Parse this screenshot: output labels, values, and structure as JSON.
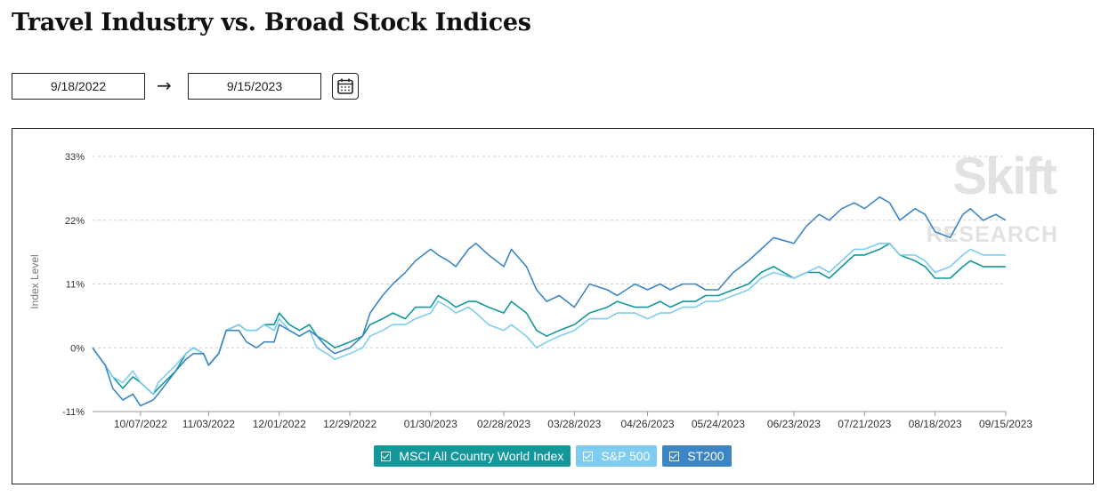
{
  "title": "Travel Industry vs. Broad Stock Indices",
  "date_range": {
    "start": "9/18/2022",
    "end": "9/15/2023",
    "arrow": "→"
  },
  "watermark": {
    "line1": "Skift",
    "line2": "RESEARCH"
  },
  "chart_data": {
    "type": "line",
    "ylabel": "Index Level",
    "xlabel": "",
    "ylim": [
      -11,
      33
    ],
    "y_ticks": [
      "33%",
      "22%",
      "11%",
      "0%",
      "-11%"
    ],
    "y_tick_values": [
      33,
      22,
      11,
      0,
      -11
    ],
    "x_ticks": [
      "10/07/2022",
      "11/03/2022",
      "12/01/2022",
      "12/29/2022",
      "01/30/2023",
      "02/28/2023",
      "03/28/2023",
      "04/26/2023",
      "05/24/2023",
      "06/23/2023",
      "07/21/2023",
      "08/18/2023",
      "09/15/2023"
    ],
    "x_range": [
      "9/18/2022",
      "9/15/2023"
    ],
    "grid": "horizontal dashed",
    "legend_placement": "bottom-center",
    "series": [
      {
        "name": "MSCI All Country World Index",
        "color": "#13979b",
        "points": [
          [
            "9/18/2022",
            0
          ],
          [
            "9/23/2022",
            -3
          ],
          [
            "9/26/2022",
            -5
          ],
          [
            "9/30/2022",
            -7
          ],
          [
            "10/04/2022",
            -5
          ],
          [
            "10/07/2022",
            -6
          ],
          [
            "10/12/2022",
            -8
          ],
          [
            "10/14/2022",
            -7
          ],
          [
            "10/21/2022",
            -4
          ],
          [
            "10/25/2022",
            -1
          ],
          [
            "10/28/2022",
            0
          ],
          [
            "11/01/2022",
            -1
          ],
          [
            "11/03/2022",
            -3
          ],
          [
            "11/07/2022",
            -1
          ],
          [
            "11/10/2022",
            3
          ],
          [
            "11/15/2022",
            4
          ],
          [
            "11/18/2022",
            3
          ],
          [
            "11/22/2022",
            3
          ],
          [
            "11/25/2022",
            4
          ],
          [
            "11/29/2022",
            4
          ],
          [
            "12/01/2022",
            6
          ],
          [
            "12/05/2022",
            4
          ],
          [
            "12/09/2022",
            3
          ],
          [
            "12/13/2022",
            4
          ],
          [
            "12/16/2022",
            2
          ],
          [
            "12/20/2022",
            1
          ],
          [
            "12/23/2022",
            0
          ],
          [
            "12/29/2022",
            1
          ],
          [
            "01/03/2023",
            2
          ],
          [
            "01/06/2023",
            4
          ],
          [
            "01/11/2023",
            5
          ],
          [
            "01/15/2023",
            6
          ],
          [
            "01/20/2023",
            5
          ],
          [
            "01/24/2023",
            7
          ],
          [
            "01/30/2023",
            7
          ],
          [
            "02/02/2023",
            9
          ],
          [
            "02/06/2023",
            8
          ],
          [
            "02/09/2023",
            7
          ],
          [
            "02/14/2023",
            8
          ],
          [
            "02/17/2023",
            8
          ],
          [
            "02/22/2023",
            7
          ],
          [
            "02/28/2023",
            6
          ],
          [
            "03/03/2023",
            8
          ],
          [
            "03/09/2023",
            6
          ],
          [
            "03/13/2023",
            3
          ],
          [
            "03/17/2023",
            2
          ],
          [
            "03/22/2023",
            3
          ],
          [
            "03/28/2023",
            4
          ],
          [
            "04/03/2023",
            6
          ],
          [
            "04/10/2023",
            7
          ],
          [
            "04/14/2023",
            8
          ],
          [
            "04/21/2023",
            7
          ],
          [
            "04/26/2023",
            7
          ],
          [
            "05/01/2023",
            8
          ],
          [
            "05/05/2023",
            7
          ],
          [
            "05/10/2023",
            8
          ],
          [
            "05/15/2023",
            8
          ],
          [
            "05/19/2023",
            9
          ],
          [
            "05/24/2023",
            9
          ],
          [
            "05/30/2023",
            10
          ],
          [
            "06/05/2023",
            11
          ],
          [
            "06/10/2023",
            13
          ],
          [
            "06/15/2023",
            14
          ],
          [
            "06/23/2023",
            12
          ],
          [
            "06/28/2023",
            13
          ],
          [
            "07/03/2023",
            13
          ],
          [
            "07/07/2023",
            12
          ],
          [
            "07/12/2023",
            14
          ],
          [
            "07/17/2023",
            16
          ],
          [
            "07/21/2023",
            16
          ],
          [
            "07/27/2023",
            17
          ],
          [
            "07/31/2023",
            18
          ],
          [
            "08/04/2023",
            16
          ],
          [
            "08/10/2023",
            15
          ],
          [
            "08/14/2023",
            14
          ],
          [
            "08/18/2023",
            12
          ],
          [
            "08/24/2023",
            12
          ],
          [
            "08/29/2023",
            14
          ],
          [
            "09/01/2023",
            15
          ],
          [
            "09/06/2023",
            14
          ],
          [
            "09/11/2023",
            14
          ],
          [
            "09/15/2023",
            14
          ]
        ]
      },
      {
        "name": "S&P 500",
        "color": "#7ecdf0",
        "points": [
          [
            "9/18/2022",
            0
          ],
          [
            "9/23/2022",
            -3
          ],
          [
            "9/26/2022",
            -5
          ],
          [
            "9/30/2022",
            -6
          ],
          [
            "10/04/2022",
            -4
          ],
          [
            "10/07/2022",
            -6
          ],
          [
            "10/12/2022",
            -8
          ],
          [
            "10/14/2022",
            -6
          ],
          [
            "10/21/2022",
            -3
          ],
          [
            "10/25/2022",
            -1
          ],
          [
            "10/28/2022",
            0
          ],
          [
            "11/01/2022",
            -1
          ],
          [
            "11/03/2022",
            -3
          ],
          [
            "11/07/2022",
            -1
          ],
          [
            "11/10/2022",
            3
          ],
          [
            "11/15/2022",
            4
          ],
          [
            "11/18/2022",
            3
          ],
          [
            "11/22/2022",
            3
          ],
          [
            "11/25/2022",
            4
          ],
          [
            "11/29/2022",
            3
          ],
          [
            "12/01/2022",
            5
          ],
          [
            "12/05/2022",
            3
          ],
          [
            "12/09/2022",
            2
          ],
          [
            "12/13/2022",
            3
          ],
          [
            "12/16/2022",
            0
          ],
          [
            "12/20/2022",
            -1
          ],
          [
            "12/23/2022",
            -2
          ],
          [
            "12/29/2022",
            -1
          ],
          [
            "01/03/2023",
            0
          ],
          [
            "01/06/2023",
            2
          ],
          [
            "01/11/2023",
            3
          ],
          [
            "01/15/2023",
            4
          ],
          [
            "01/20/2023",
            4
          ],
          [
            "01/24/2023",
            5
          ],
          [
            "01/30/2023",
            6
          ],
          [
            "02/02/2023",
            8
          ],
          [
            "02/06/2023",
            7
          ],
          [
            "02/09/2023",
            6
          ],
          [
            "02/14/2023",
            7
          ],
          [
            "02/17/2023",
            6
          ],
          [
            "02/22/2023",
            4
          ],
          [
            "02/28/2023",
            3
          ],
          [
            "03/03/2023",
            4
          ],
          [
            "03/09/2023",
            2
          ],
          [
            "03/13/2023",
            0
          ],
          [
            "03/17/2023",
            1
          ],
          [
            "03/22/2023",
            2
          ],
          [
            "03/28/2023",
            3
          ],
          [
            "04/03/2023",
            5
          ],
          [
            "04/10/2023",
            5
          ],
          [
            "04/14/2023",
            6
          ],
          [
            "04/21/2023",
            6
          ],
          [
            "04/26/2023",
            5
          ],
          [
            "05/01/2023",
            6
          ],
          [
            "05/05/2023",
            6
          ],
          [
            "05/10/2023",
            7
          ],
          [
            "05/15/2023",
            7
          ],
          [
            "05/19/2023",
            8
          ],
          [
            "05/24/2023",
            8
          ],
          [
            "05/30/2023",
            9
          ],
          [
            "06/05/2023",
            10
          ],
          [
            "06/10/2023",
            12
          ],
          [
            "06/15/2023",
            13
          ],
          [
            "06/23/2023",
            12
          ],
          [
            "06/28/2023",
            13
          ],
          [
            "07/03/2023",
            14
          ],
          [
            "07/07/2023",
            13
          ],
          [
            "07/12/2023",
            15
          ],
          [
            "07/17/2023",
            17
          ],
          [
            "07/21/2023",
            17
          ],
          [
            "07/27/2023",
            18
          ],
          [
            "07/31/2023",
            18
          ],
          [
            "08/04/2023",
            16
          ],
          [
            "08/10/2023",
            16
          ],
          [
            "08/14/2023",
            15
          ],
          [
            "08/18/2023",
            13
          ],
          [
            "08/24/2023",
            14
          ],
          [
            "08/29/2023",
            16
          ],
          [
            "09/01/2023",
            17
          ],
          [
            "09/06/2023",
            16
          ],
          [
            "09/11/2023",
            16
          ],
          [
            "09/15/2023",
            16
          ]
        ]
      },
      {
        "name": "ST200",
        "color": "#3d86c6",
        "points": [
          [
            "9/18/2022",
            0
          ],
          [
            "9/23/2022",
            -3
          ],
          [
            "9/26/2022",
            -7
          ],
          [
            "9/30/2022",
            -9
          ],
          [
            "10/04/2022",
            -8
          ],
          [
            "10/07/2022",
            -10
          ],
          [
            "10/12/2022",
            -9
          ],
          [
            "10/14/2022",
            -8
          ],
          [
            "10/21/2022",
            -4
          ],
          [
            "10/25/2022",
            -2
          ],
          [
            "10/28/2022",
            -1
          ],
          [
            "11/01/2022",
            -1
          ],
          [
            "11/03/2022",
            -3
          ],
          [
            "11/07/2022",
            -1
          ],
          [
            "11/10/2022",
            3
          ],
          [
            "11/15/2022",
            3
          ],
          [
            "11/18/2022",
            1
          ],
          [
            "11/22/2022",
            0
          ],
          [
            "11/25/2022",
            1
          ],
          [
            "11/29/2022",
            1
          ],
          [
            "12/01/2022",
            4
          ],
          [
            "12/05/2022",
            3
          ],
          [
            "12/09/2022",
            2
          ],
          [
            "12/13/2022",
            3
          ],
          [
            "12/16/2022",
            2
          ],
          [
            "12/20/2022",
            0
          ],
          [
            "12/23/2022",
            -1
          ],
          [
            "12/29/2022",
            0
          ],
          [
            "01/03/2023",
            2
          ],
          [
            "01/06/2023",
            6
          ],
          [
            "01/11/2023",
            9
          ],
          [
            "01/15/2023",
            11
          ],
          [
            "01/20/2023",
            13
          ],
          [
            "01/24/2023",
            15
          ],
          [
            "01/30/2023",
            17
          ],
          [
            "02/02/2023",
            16
          ],
          [
            "02/06/2023",
            15
          ],
          [
            "02/09/2023",
            14
          ],
          [
            "02/14/2023",
            17
          ],
          [
            "02/17/2023",
            18
          ],
          [
            "02/22/2023",
            16
          ],
          [
            "02/28/2023",
            14
          ],
          [
            "03/03/2023",
            17
          ],
          [
            "03/09/2023",
            14
          ],
          [
            "03/13/2023",
            10
          ],
          [
            "03/17/2023",
            8
          ],
          [
            "03/22/2023",
            9
          ],
          [
            "03/28/2023",
            7
          ],
          [
            "04/03/2023",
            11
          ],
          [
            "04/10/2023",
            10
          ],
          [
            "04/14/2023",
            9
          ],
          [
            "04/21/2023",
            11
          ],
          [
            "04/26/2023",
            10
          ],
          [
            "05/01/2023",
            11
          ],
          [
            "05/05/2023",
            10
          ],
          [
            "05/10/2023",
            11
          ],
          [
            "05/15/2023",
            11
          ],
          [
            "05/19/2023",
            10
          ],
          [
            "05/24/2023",
            10
          ],
          [
            "05/30/2023",
            13
          ],
          [
            "06/05/2023",
            15
          ],
          [
            "06/10/2023",
            17
          ],
          [
            "06/15/2023",
            19
          ],
          [
            "06/23/2023",
            18
          ],
          [
            "06/28/2023",
            21
          ],
          [
            "07/03/2023",
            23
          ],
          [
            "07/07/2023",
            22
          ],
          [
            "07/12/2023",
            24
          ],
          [
            "07/17/2023",
            25
          ],
          [
            "07/21/2023",
            24
          ],
          [
            "07/27/2023",
            26
          ],
          [
            "07/31/2023",
            25
          ],
          [
            "08/04/2023",
            22
          ],
          [
            "08/10/2023",
            24
          ],
          [
            "08/14/2023",
            23
          ],
          [
            "08/18/2023",
            20
          ],
          [
            "08/24/2023",
            19
          ],
          [
            "08/29/2023",
            23
          ],
          [
            "09/01/2023",
            24
          ],
          [
            "09/06/2023",
            22
          ],
          [
            "09/11/2023",
            23
          ],
          [
            "09/15/2023",
            22
          ]
        ]
      }
    ]
  }
}
